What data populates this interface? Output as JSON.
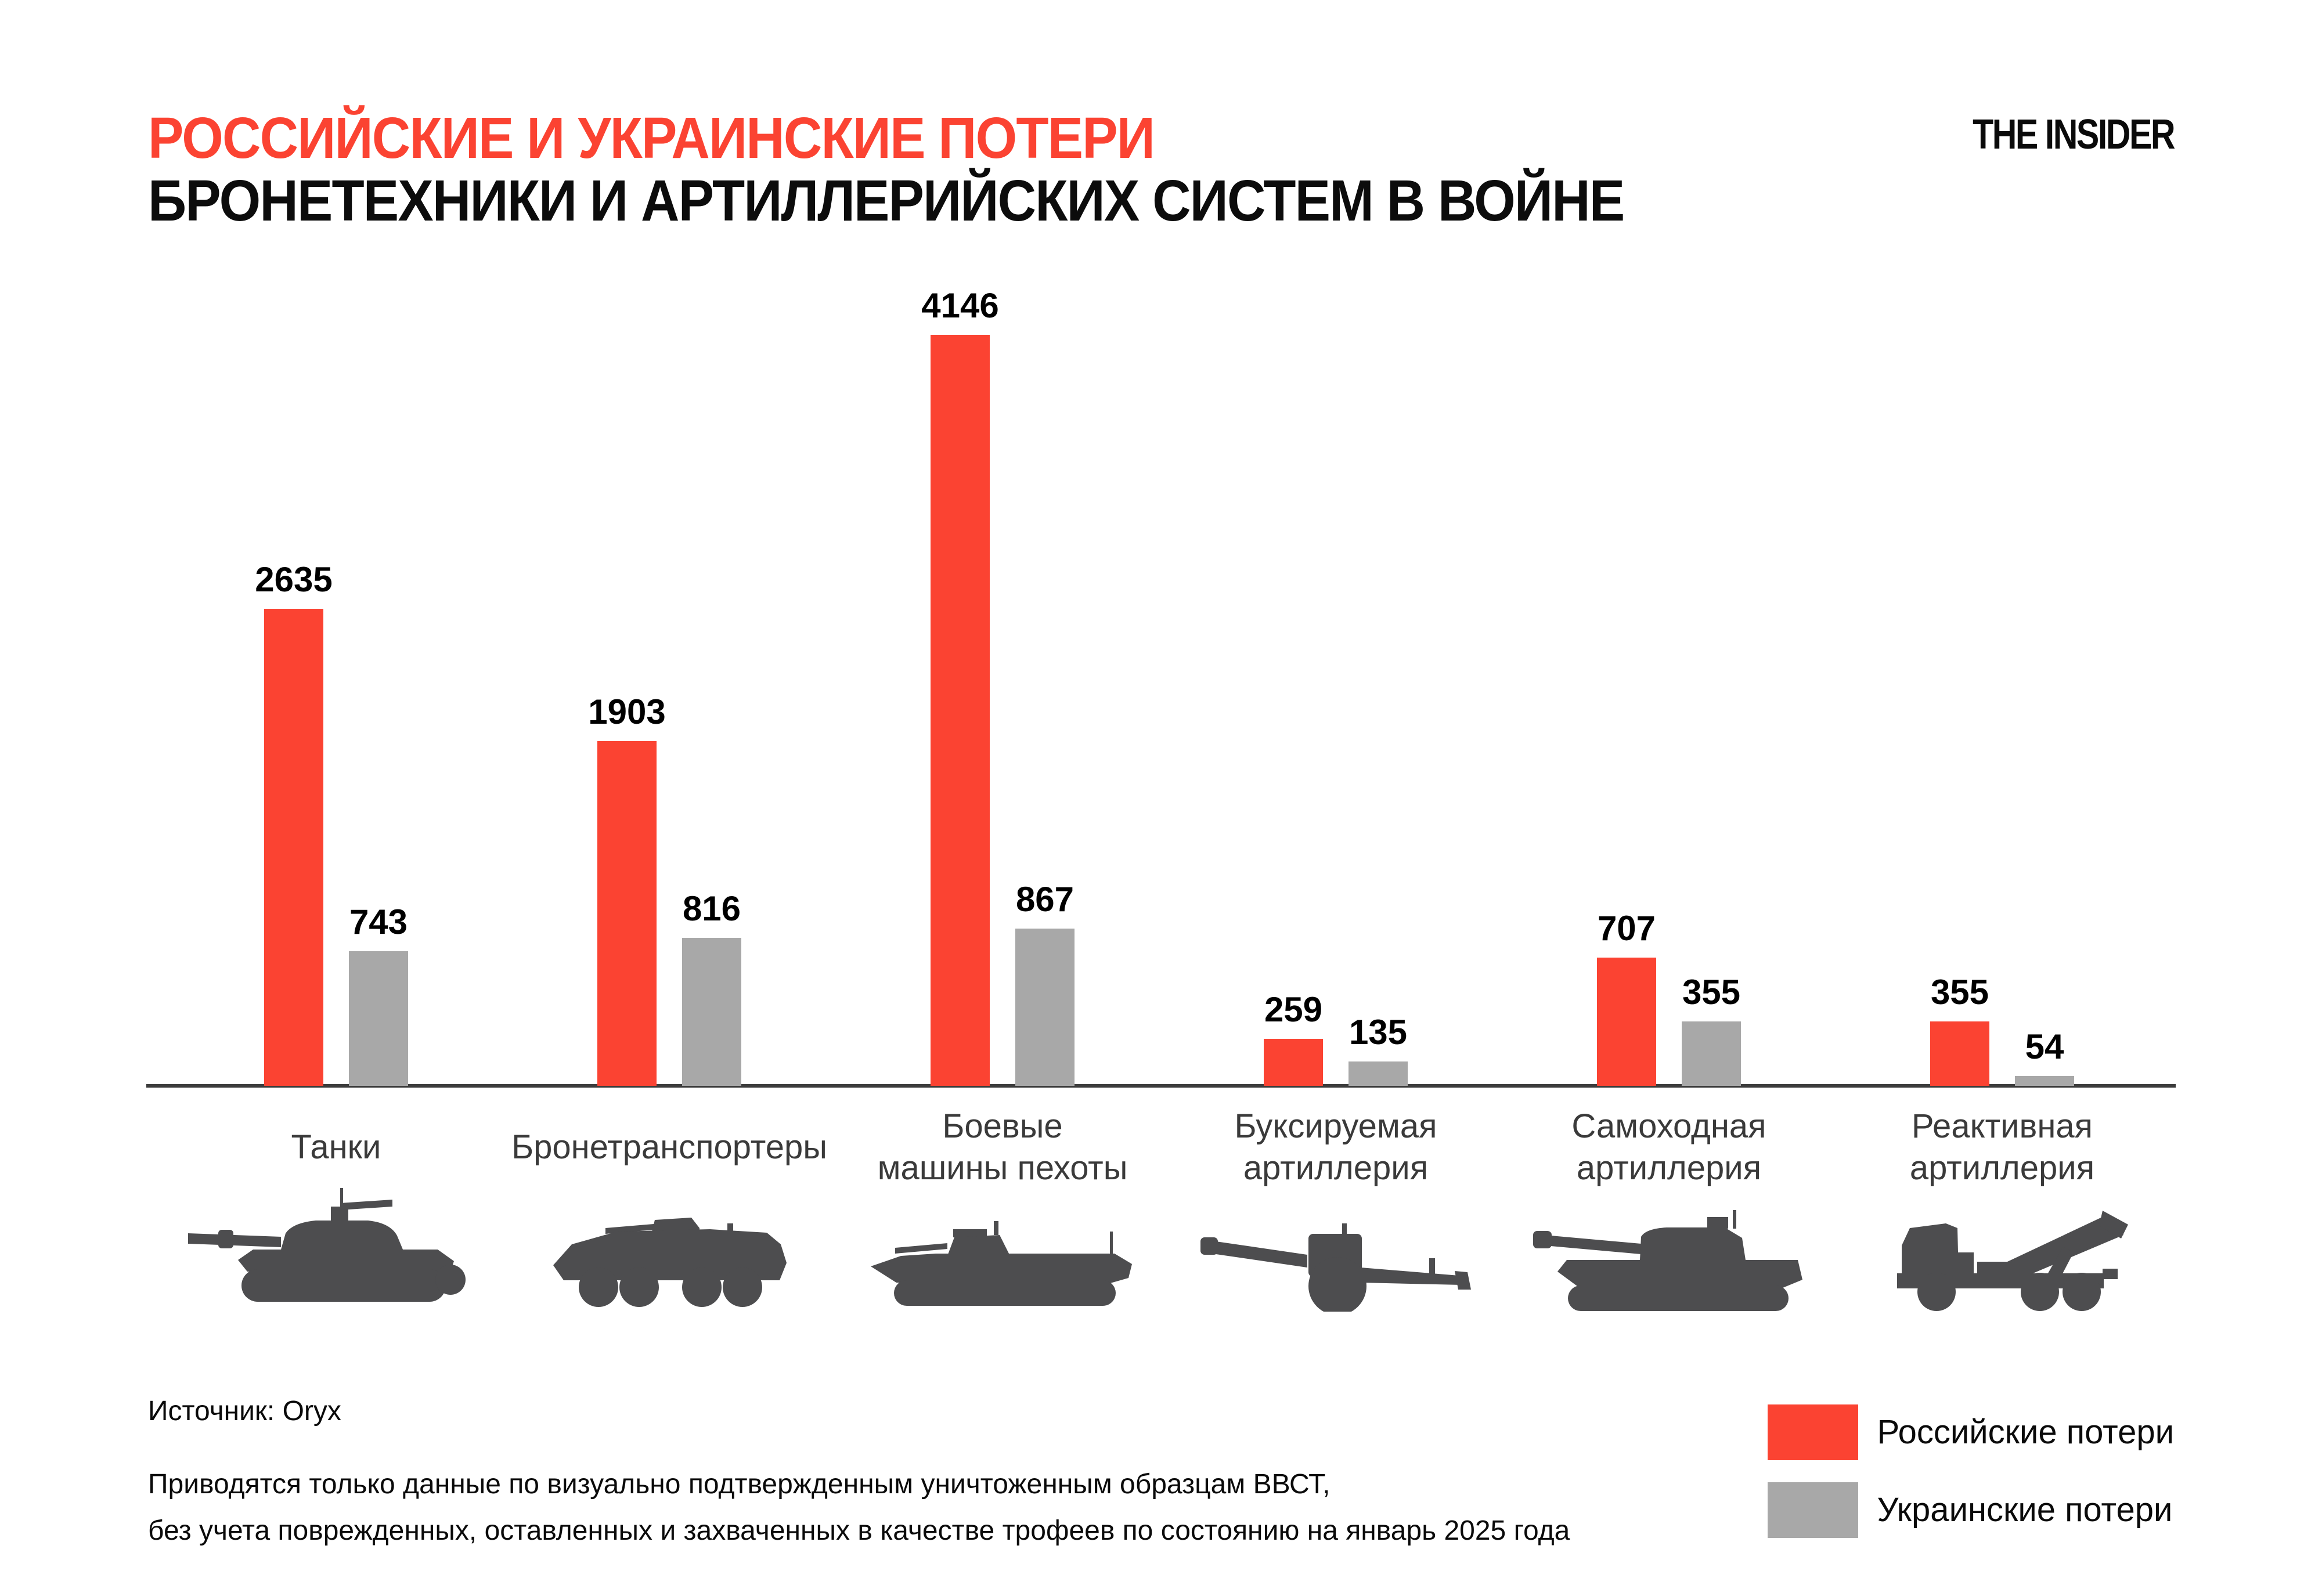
{
  "header": {
    "title": "РОССИЙСКИЕ И УКРАИНСКИЕ ПОТЕРИ",
    "subtitle": "БРОНЕТЕХНИКИ И АРТИЛЛЕРИЙСКИХ СИСТЕМ В ВОЙНЕ",
    "logo": "THE INSIDER"
  },
  "colors": {
    "title_red": "#FB4332",
    "russian": "#FB4332",
    "ukrainian": "#A8A8A8",
    "axis": "#3c3c3c",
    "icon": "#4d4d4f"
  },
  "chart_data": {
    "type": "bar",
    "title": "Российские и украинские потери бронетехники и артиллерийских систем в войне",
    "categories": [
      "Танки",
      "Бронетранспортеры",
      "Боевые\nмашины пехоты",
      "Буксируемая\nартиллерия",
      "Самоходная\nартиллерия",
      "Реактивная\nартиллерия"
    ],
    "series": [
      {
        "name": "Российские потери",
        "color": "#FB4332",
        "values": [
          2635,
          1903,
          4146,
          259,
          707,
          355
        ]
      },
      {
        "name": "Украинские потери",
        "color": "#A8A8A8",
        "values": [
          743,
          816,
          867,
          135,
          355,
          54
        ]
      }
    ],
    "ylim": [
      0,
      4146
    ],
    "grid": false,
    "value_labels": true,
    "legend_position": "bottom-right",
    "icons": [
      "tank",
      "apc",
      "ifv",
      "towed-artillery",
      "self-propelled-artillery",
      "mlrs"
    ]
  },
  "footer": {
    "source": "Источник: Oryx",
    "note_line1": "Приводятся только данные по визуально подтвержденным уничтоженным образцам ВВСТ,",
    "note_line2": "без учета поврежденных, оставленных и захваченных в качестве трофеев по состоянию на январь 2025 года",
    "legend": [
      {
        "label": "Российские потери",
        "color": "#FB4332"
      },
      {
        "label": "Украинские потери",
        "color": "#A8A8A8"
      }
    ]
  }
}
